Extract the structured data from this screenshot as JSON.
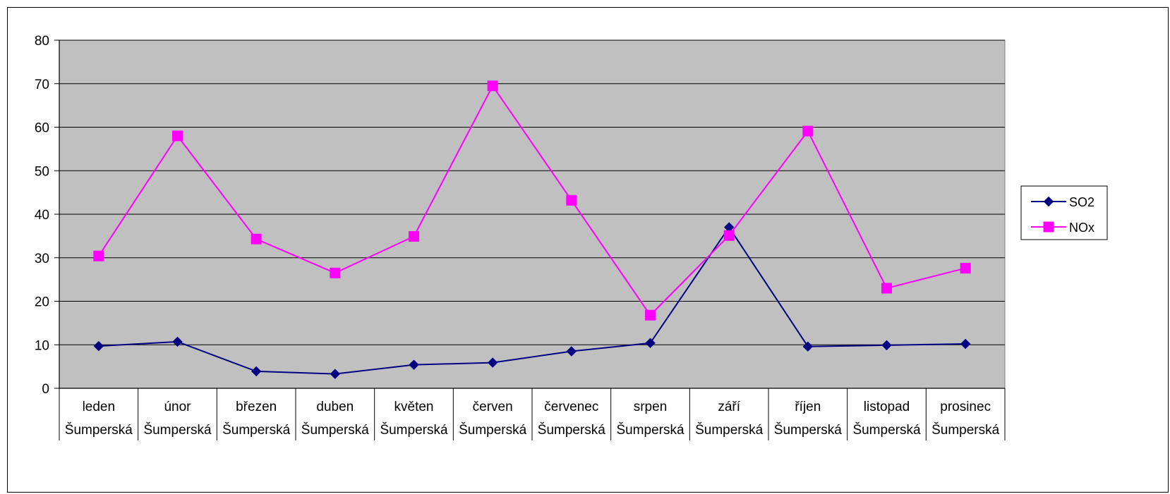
{
  "chart_data": {
    "type": "line",
    "title": "",
    "xlabel": "",
    "ylabel": "",
    "ylim": [
      0,
      80
    ],
    "yticks": [
      0,
      10,
      20,
      30,
      40,
      50,
      60,
      70,
      80
    ],
    "grid": true,
    "legend_position": "right",
    "categories": [
      [
        "leden",
        "Šumperská"
      ],
      [
        "únor",
        "Šumperská"
      ],
      [
        "březen",
        "Šumperská"
      ],
      [
        "duben",
        "Šumperská"
      ],
      [
        "květen",
        "Šumperská"
      ],
      [
        "červen",
        "Šumperská"
      ],
      [
        "červenec",
        "Šumperská"
      ],
      [
        "srpen",
        "Šumperská"
      ],
      [
        "září",
        "Šumperská"
      ],
      [
        "říjen",
        "Šumperská"
      ],
      [
        "listopad",
        "Šumperská"
      ],
      [
        "prosinec",
        "Šumperská"
      ]
    ],
    "series": [
      {
        "name": "SO2",
        "color": "#000080",
        "marker": "diamond",
        "values": [
          9.7,
          10.7,
          3.9,
          3.3,
          5.4,
          5.9,
          8.5,
          10.4,
          37.0,
          9.6,
          9.9,
          10.2
        ]
      },
      {
        "name": "NOx",
        "color": "#ff00ff",
        "marker": "square",
        "values": [
          30.4,
          58.0,
          34.3,
          26.5,
          34.9,
          69.5,
          43.2,
          16.8,
          35.1,
          59.1,
          23.0,
          27.6
        ]
      }
    ]
  },
  "colors": {
    "plot_background": "#c0c0c0",
    "gridline": "#000000"
  }
}
